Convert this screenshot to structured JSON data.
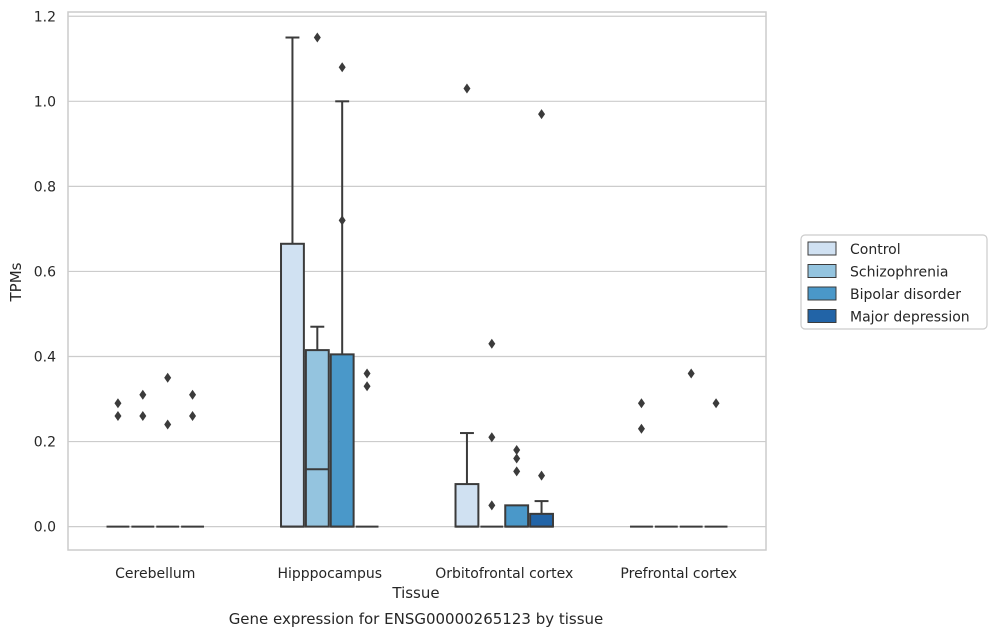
{
  "chart_data": {
    "type": "box",
    "title": "",
    "caption": "Gene expression for ENSG00000265123 by tissue",
    "xlabel": "Tissue",
    "ylabel": "TPMs",
    "ylim": [
      -0.055,
      1.21
    ],
    "yticks": [
      "0.0",
      "0.2",
      "0.4",
      "0.6",
      "0.8",
      "1.0",
      "1.2"
    ],
    "ytick_values": [
      0.0,
      0.2,
      0.4,
      0.6,
      0.8,
      1.0,
      1.2
    ],
    "grid": "horizontal",
    "legend_position": "right",
    "categories": [
      "Cerebellum",
      "Hipppocampus",
      "Orbitofrontal cortex",
      "Prefrontal cortex"
    ],
    "series": [
      {
        "name": "Control",
        "color": "#d0e1f2",
        "boxes": [
          {
            "q1": 0,
            "median": 0,
            "q3": 0,
            "whisker_low": 0,
            "whisker_high": 0,
            "outliers": [
              0.29,
              0.26
            ]
          },
          {
            "q1": 0,
            "median": 0,
            "q3": 0.665,
            "whisker_low": 0,
            "whisker_high": 1.15,
            "outliers": []
          },
          {
            "q1": 0,
            "median": 0,
            "q3": 0.1,
            "whisker_low": 0,
            "whisker_high": 0.22,
            "outliers": [
              1.03
            ]
          },
          {
            "q1": 0,
            "median": 0,
            "q3": 0,
            "whisker_low": 0,
            "whisker_high": 0,
            "outliers": [
              0.29,
              0.23
            ]
          }
        ]
      },
      {
        "name": "Schizophrenia",
        "color": "#94c4df",
        "boxes": [
          {
            "q1": 0,
            "median": 0,
            "q3": 0,
            "whisker_low": 0,
            "whisker_high": 0,
            "outliers": [
              0.31,
              0.26
            ]
          },
          {
            "q1": 0,
            "median": 0.135,
            "q3": 0.415,
            "whisker_low": 0,
            "whisker_high": 0.47,
            "outliers": [
              1.15
            ]
          },
          {
            "q1": 0,
            "median": 0,
            "q3": 0,
            "whisker_low": 0,
            "whisker_high": 0,
            "outliers": [
              0.43,
              0.21,
              0.05
            ]
          },
          {
            "q1": 0,
            "median": 0,
            "q3": 0,
            "whisker_low": 0,
            "whisker_high": 0,
            "outliers": []
          }
        ]
      },
      {
        "name": "Bipolar disorder",
        "color": "#4a98c9",
        "boxes": [
          {
            "q1": 0,
            "median": 0,
            "q3": 0,
            "whisker_low": 0,
            "whisker_high": 0,
            "outliers": [
              0.35,
              0.24
            ]
          },
          {
            "q1": 0,
            "median": 0,
            "q3": 0.405,
            "whisker_low": 0,
            "whisker_high": 1.0,
            "outliers": [
              1.08,
              0.72
            ]
          },
          {
            "q1": 0,
            "median": 0,
            "q3": 0.05,
            "whisker_low": 0,
            "whisker_high": 0.05,
            "outliers": [
              0.18,
              0.16,
              0.13
            ]
          },
          {
            "q1": 0,
            "median": 0,
            "q3": 0,
            "whisker_low": 0,
            "whisker_high": 0,
            "outliers": [
              0.36
            ]
          }
        ]
      },
      {
        "name": "Major depression",
        "color": "#2264a7",
        "boxes": [
          {
            "q1": 0,
            "median": 0,
            "q3": 0,
            "whisker_low": 0,
            "whisker_high": 0,
            "outliers": [
              0.31,
              0.26
            ]
          },
          {
            "q1": 0,
            "median": 0,
            "q3": 0,
            "whisker_low": 0,
            "whisker_high": 0,
            "outliers": [
              0.36,
              0.33
            ]
          },
          {
            "q1": 0,
            "median": 0,
            "q3": 0.03,
            "whisker_low": 0,
            "whisker_high": 0.06,
            "outliers": [
              0.97,
              0.12
            ]
          },
          {
            "q1": 0,
            "median": 0,
            "q3": 0,
            "whisker_low": 0,
            "whisker_high": 0,
            "outliers": [
              0.29
            ]
          }
        ]
      }
    ]
  }
}
